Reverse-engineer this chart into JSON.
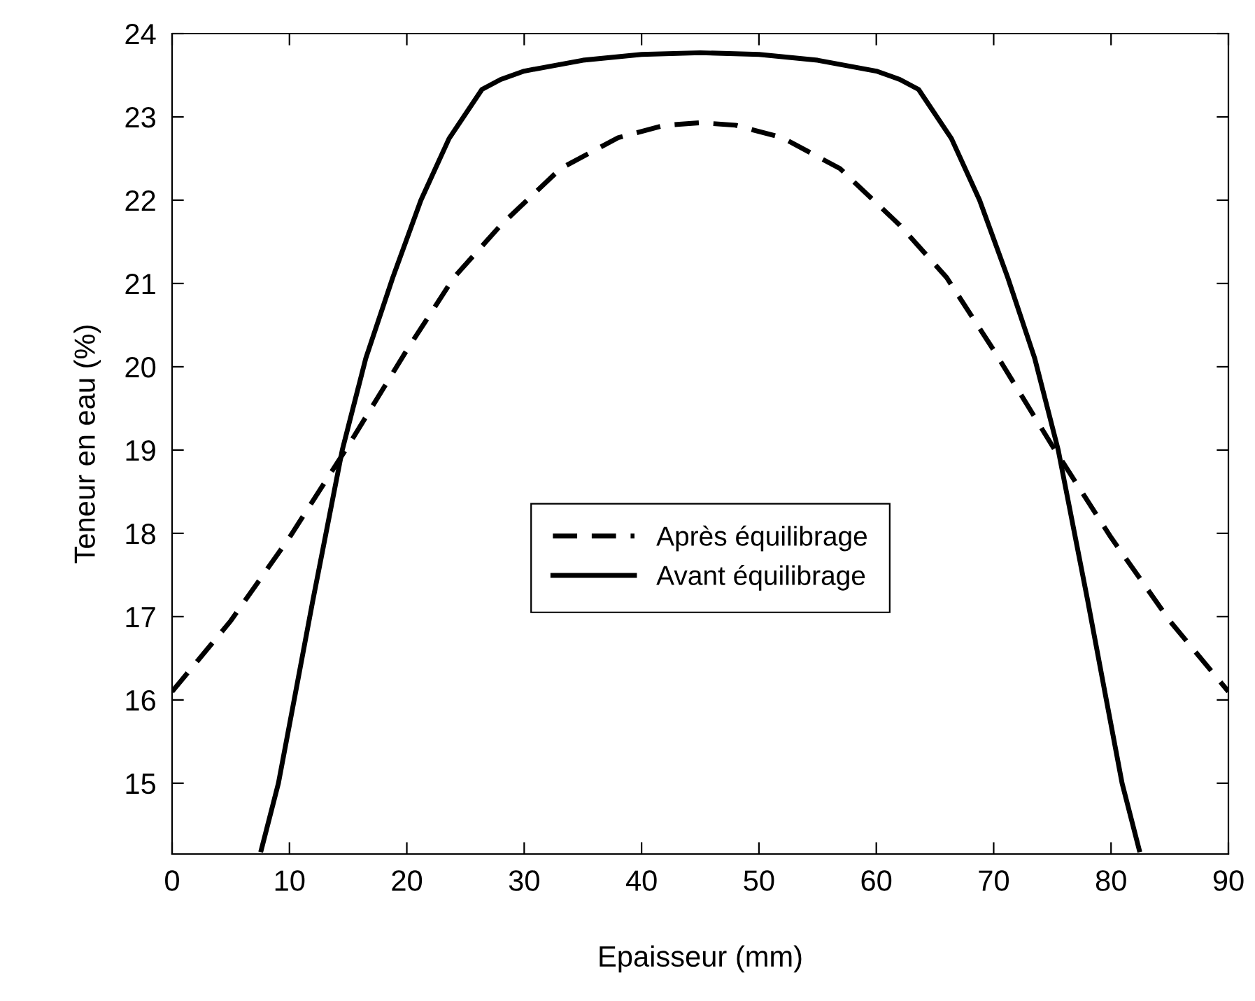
{
  "chart_data": {
    "type": "line",
    "xlabel": "Epaisseur (mm)",
    "ylabel": "Teneur en eau (%)",
    "xlim": [
      0,
      90
    ],
    "ylim": [
      14.15,
      24
    ],
    "xticks": [
      0,
      10,
      20,
      30,
      40,
      50,
      60,
      70,
      80,
      90
    ],
    "yticks": [
      15,
      16,
      17,
      18,
      19,
      20,
      21,
      22,
      23,
      24
    ],
    "grid": false,
    "legend": "center",
    "marker": "none",
    "series": [
      {
        "name": "Après équilibrage",
        "color": "#000000",
        "line_style": "dashed",
        "x": [
          0,
          5,
          10,
          15,
          20,
          24,
          28,
          33.1,
          38,
          42,
          45,
          48,
          52,
          56.9,
          62,
          66,
          70,
          75,
          80,
          85,
          90
        ],
        "values": [
          16.1,
          16.95,
          17.95,
          19.05,
          20.2,
          21.07,
          21.7,
          22.38,
          22.75,
          22.9,
          22.93,
          22.9,
          22.75,
          22.38,
          21.7,
          21.07,
          20.2,
          19.05,
          17.95,
          16.95,
          16.1
        ]
      },
      {
        "name": "Avant équilibrage",
        "color": "#000000",
        "line_style": "solid",
        "x": [
          7.6,
          9.06,
          10.4,
          12,
          14.5,
          16.5,
          18.8,
          21.2,
          23.6,
          26.4,
          28,
          30,
          35,
          40,
          45,
          50,
          55,
          60,
          62,
          63.6,
          66.4,
          68.8,
          71.2,
          73.5,
          75.5,
          78,
          79.6,
          80.94,
          82.4
        ],
        "values": [
          14.2,
          15,
          16,
          17.2,
          19,
          20.1,
          21.07,
          22.0,
          22.74,
          23.33,
          23.45,
          23.55,
          23.68,
          23.75,
          23.77,
          23.75,
          23.68,
          23.55,
          23.45,
          23.33,
          22.74,
          22.0,
          21.07,
          20.1,
          19,
          17.2,
          16,
          15,
          14.2
        ]
      }
    ]
  }
}
